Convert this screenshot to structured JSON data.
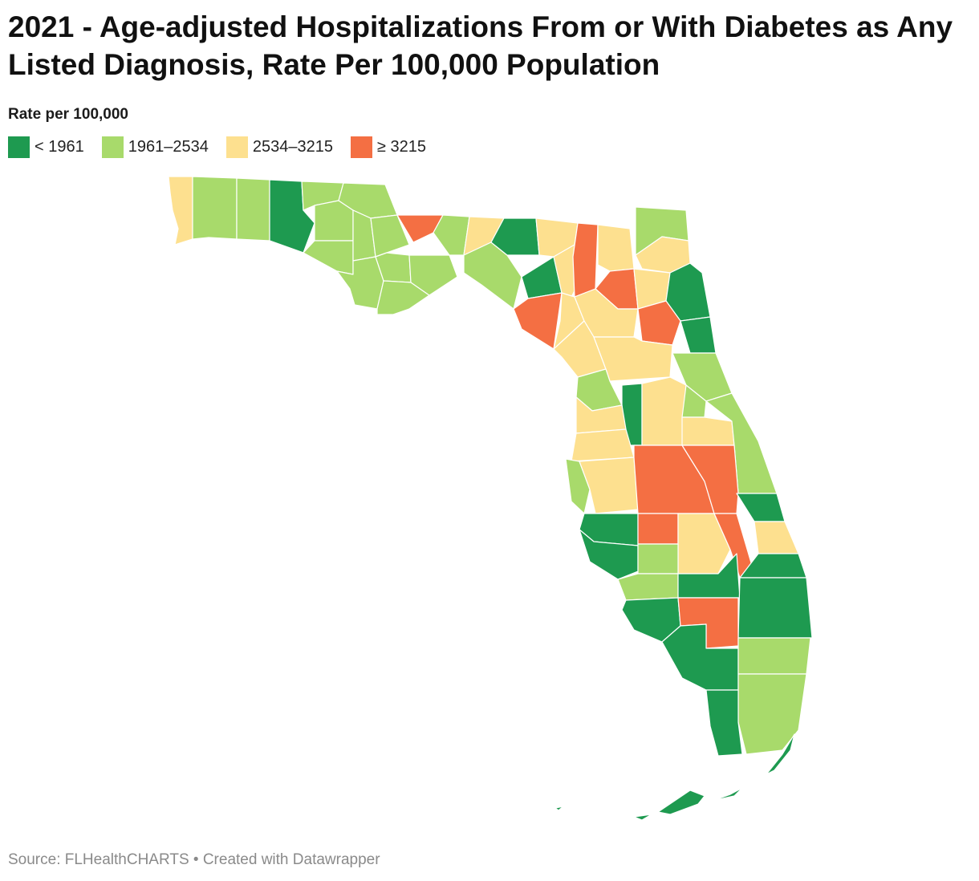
{
  "title": "2021 - Age-adjusted Hospitalizations From or With Diabetes as Any Listed Diagnosis, Rate Per 100,000 Population",
  "legend": {
    "title": "Rate per 100,000",
    "items": [
      {
        "label": "< 1961",
        "color": "#1e9a50"
      },
      {
        "label": "1961–2534",
        "color": "#a8da6b"
      },
      {
        "label": "2534–3215",
        "color": "#fde08f"
      },
      {
        "label": "≥ 3215",
        "color": "#f46f43"
      }
    ]
  },
  "source": "Source: FLHealthCHARTS • Created with Datawrapper"
}
